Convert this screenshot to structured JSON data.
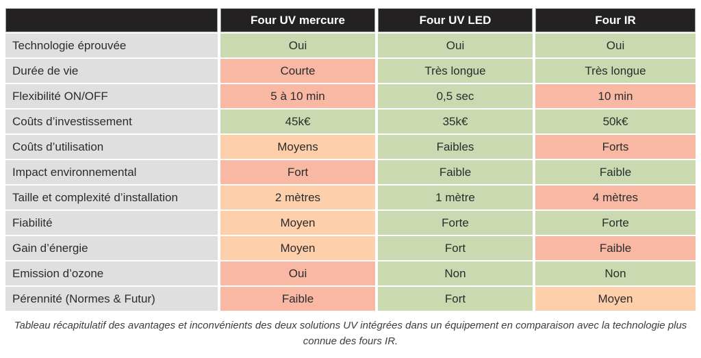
{
  "colors": {
    "good": "#cbd9b1",
    "medium": "#fdcfab",
    "bad": "#f9b8a3",
    "label_bg": "#dfdfdf",
    "header_bg": "#242122",
    "header_text": "#ffffff",
    "body_text": "#2b2b2b",
    "caption_text": "#3d3d3d"
  },
  "table": {
    "columns": [
      "Four UV mercure",
      "Four UV LED",
      "Four IR"
    ],
    "rows": [
      {
        "label": "Technologie éprouvée",
        "values": [
          {
            "text": "Oui",
            "tone": "good"
          },
          {
            "text": "Oui",
            "tone": "good"
          },
          {
            "text": "Oui",
            "tone": "good"
          }
        ]
      },
      {
        "label": "Durée de vie",
        "values": [
          {
            "text": "Courte",
            "tone": "bad"
          },
          {
            "text": "Très longue",
            "tone": "good"
          },
          {
            "text": "Très longue",
            "tone": "good"
          }
        ]
      },
      {
        "label": "Flexibilité ON/OFF",
        "values": [
          {
            "text": "5 à 10 min",
            "tone": "bad"
          },
          {
            "text": "0,5 sec",
            "tone": "good"
          },
          {
            "text": "10 min",
            "tone": "bad"
          }
        ]
      },
      {
        "label": "Coûts d’investissement",
        "values": [
          {
            "text": "45k€",
            "tone": "good"
          },
          {
            "text": "35k€",
            "tone": "good"
          },
          {
            "text": "50k€",
            "tone": "good"
          }
        ]
      },
      {
        "label": "Coûts d’utilisation",
        "values": [
          {
            "text": "Moyens",
            "tone": "medium"
          },
          {
            "text": "Faibles",
            "tone": "good"
          },
          {
            "text": "Forts",
            "tone": "bad"
          }
        ]
      },
      {
        "label": "Impact environnemental",
        "values": [
          {
            "text": "Fort",
            "tone": "bad"
          },
          {
            "text": "Faible",
            "tone": "good"
          },
          {
            "text": "Faible",
            "tone": "good"
          }
        ]
      },
      {
        "label": "Taille et complexité d’installation",
        "values": [
          {
            "text": "2 mètres",
            "tone": "medium"
          },
          {
            "text": "1 mètre",
            "tone": "good"
          },
          {
            "text": "4 mètres",
            "tone": "bad"
          }
        ]
      },
      {
        "label": "Fiabilité",
        "values": [
          {
            "text": "Moyen",
            "tone": "medium"
          },
          {
            "text": "Forte",
            "tone": "good"
          },
          {
            "text": "Forte",
            "tone": "good"
          }
        ]
      },
      {
        "label": "Gain d’énergie",
        "values": [
          {
            "text": "Moyen",
            "tone": "medium"
          },
          {
            "text": "Fort",
            "tone": "good"
          },
          {
            "text": "Faible",
            "tone": "bad"
          }
        ]
      },
      {
        "label": "Emission d’ozone",
        "values": [
          {
            "text": "Oui",
            "tone": "bad"
          },
          {
            "text": "Non",
            "tone": "good"
          },
          {
            "text": "Non",
            "tone": "good"
          }
        ]
      },
      {
        "label": "Pérennité (Normes & Futur)",
        "values": [
          {
            "text": "Faible",
            "tone": "bad"
          },
          {
            "text": "Fort",
            "tone": "good"
          },
          {
            "text": "Moyen",
            "tone": "medium"
          }
        ]
      }
    ]
  },
  "caption": "Tableau récapitulatif des avantages et inconvénients des deux solutions UV intégrées dans un équipement en comparaison avec la technologie plus connue des fours IR.",
  "chart_data": {
    "type": "table",
    "columns": [
      "",
      "Four UV mercure",
      "Four UV LED",
      "Four IR"
    ],
    "rows": [
      [
        "Technologie éprouvée",
        "Oui",
        "Oui",
        "Oui"
      ],
      [
        "Durée de vie",
        "Courte",
        "Très longue",
        "Très longue"
      ],
      [
        "Flexibilité ON/OFF",
        "5 à 10 min",
        "0,5 sec",
        "10 min"
      ],
      [
        "Coûts d’investissement",
        "45k€",
        "35k€",
        "50k€"
      ],
      [
        "Coûts d’utilisation",
        "Moyens",
        "Faibles",
        "Forts"
      ],
      [
        "Impact environnemental",
        "Fort",
        "Faible",
        "Faible"
      ],
      [
        "Taille et complexité d’installation",
        "2 mètres",
        "1 mètre",
        "4 mètres"
      ],
      [
        "Fiabilité",
        "Moyen",
        "Forte",
        "Forte"
      ],
      [
        "Gain d’énergie",
        "Moyen",
        "Fort",
        "Faible"
      ],
      [
        "Emission d’ozone",
        "Oui",
        "Non",
        "Non"
      ],
      [
        "Pérennité (Normes & Futur)",
        "Faible",
        "Fort",
        "Moyen"
      ]
    ]
  }
}
